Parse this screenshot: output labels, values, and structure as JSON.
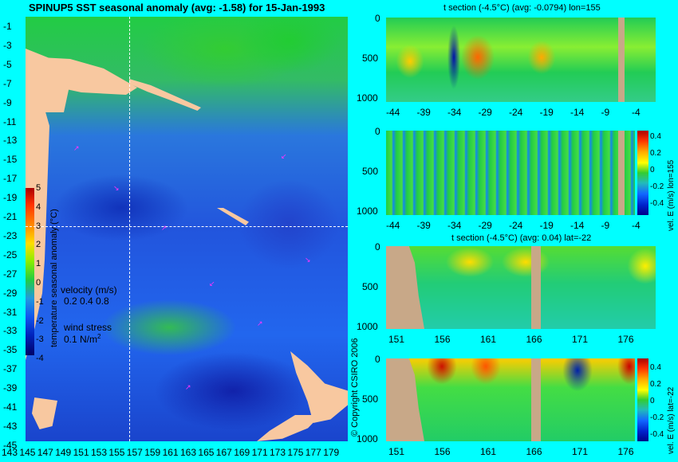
{
  "map": {
    "title": "SPINUP5 SST seasonal anomaly (avg: -1.58) for 15-Jan-1993",
    "lat_ticks": [
      "-1",
      "-3",
      "-5",
      "-7",
      "-9",
      "-11",
      "-13",
      "-15",
      "-17",
      "-19",
      "-21",
      "-23",
      "-25",
      "-27",
      "-29",
      "-31",
      "-33",
      "-35",
      "-37",
      "-39",
      "-41",
      "-43",
      "-45"
    ],
    "lon_ticks": [
      "143",
      "145",
      "147",
      "149",
      "151",
      "153",
      "155",
      "157",
      "159",
      "161",
      "163",
      "165",
      "167",
      "169",
      "171",
      "173",
      "175",
      "177",
      "179"
    ],
    "colorbar_ticks": [
      "5",
      "4",
      "3",
      "2",
      "1",
      "0",
      "-1",
      "-2",
      "-3",
      "-4"
    ],
    "colorbar_label": "temperature seasonal anomaly (°C)",
    "velocity_label": "velocity (m/s)",
    "velocity_scale": "0.2 0.4 0.8",
    "wind_label": "wind stress",
    "wind_scale": "0.1 N/m",
    "wind_scale_sup": "2",
    "copyright": "© Copyright CSIRO 2006"
  },
  "panel1": {
    "title": "t section (-4.5°C) (avg: -0.0794) lon=155",
    "y_ticks": [
      "0",
      "500",
      "1000"
    ],
    "x_ticks": [
      "-44",
      "-39",
      "-34",
      "-29",
      "-24",
      "-19",
      "-14",
      "-9",
      "-4"
    ]
  },
  "panel2": {
    "y_ticks": [
      "0",
      "500",
      "1000"
    ],
    "x_ticks": [
      "-44",
      "-39",
      "-34",
      "-29",
      "-24",
      "-19",
      "-14",
      "-9",
      "-4"
    ],
    "colorbar_ticks": [
      "0.4",
      "0.2",
      "0",
      "-0.2",
      "-0.4"
    ],
    "colorbar_label": "vel. E (m/s) lon=155"
  },
  "panel3": {
    "title": "t section (-4.5°C) (avg: 0.04) lat=-22",
    "y_ticks": [
      "0",
      "500",
      "1000"
    ],
    "x_ticks": [
      "151",
      "156",
      "161",
      "166",
      "171",
      "176"
    ]
  },
  "panel4": {
    "y_ticks": [
      "0",
      "500",
      "1000"
    ],
    "x_ticks": [
      "151",
      "156",
      "161",
      "166",
      "171",
      "176"
    ],
    "colorbar_ticks": [
      "0.4",
      "0.2",
      "0",
      "-0.2",
      "-0.4"
    ],
    "colorbar_label": "vel. E (m/s) lat=-22"
  },
  "colors": {
    "background": "#00ffff",
    "land": "#f8c8a0",
    "seafloor": "#c8a888",
    "vector": "#ff33ff"
  }
}
